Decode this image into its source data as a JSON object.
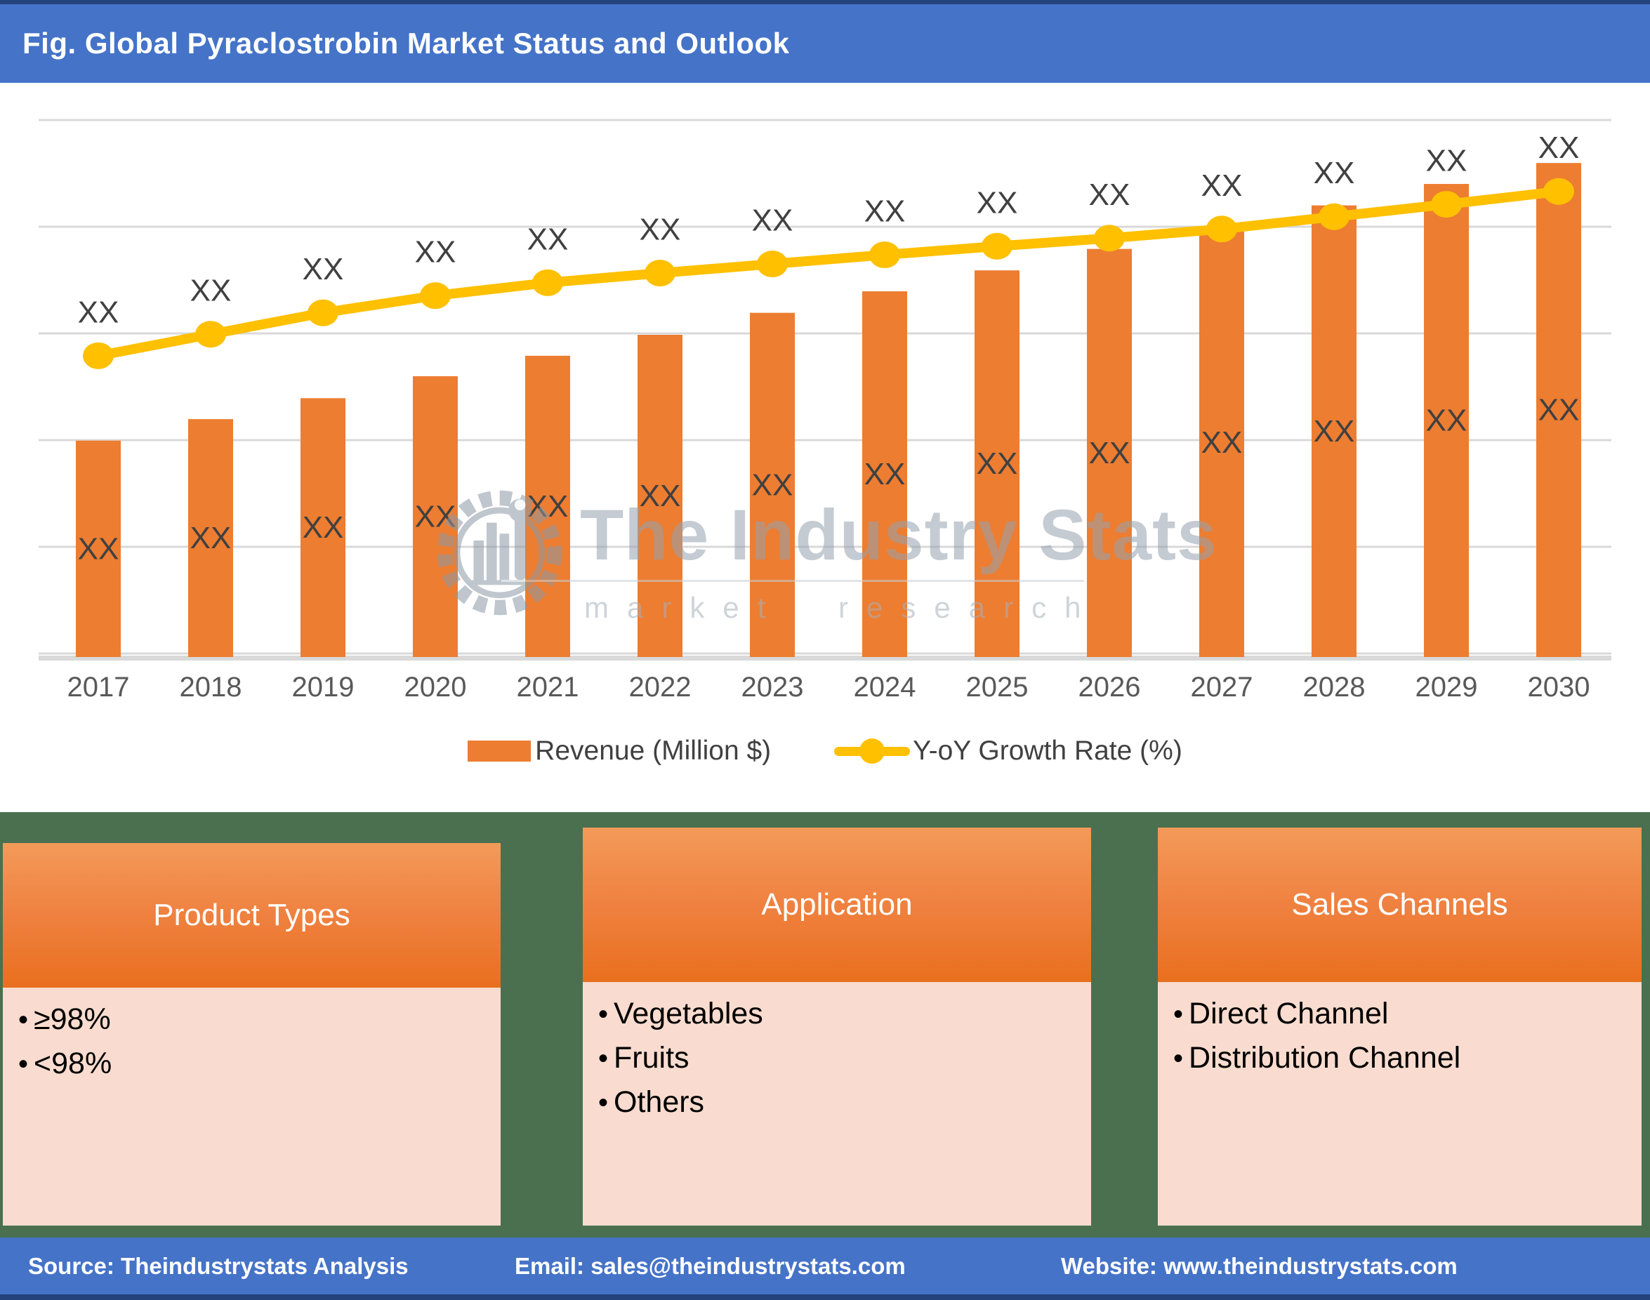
{
  "page": {
    "title": "Fig. Global Pyraclostrobin Market Status and Outlook"
  },
  "chart_data": {
    "type": "bar",
    "subtype": "combo-bar-line",
    "title": "Global Pyraclostrobin Market Status and Outlook",
    "xlabel": "",
    "ylabel": "",
    "categories": [
      "2017",
      "2018",
      "2019",
      "2020",
      "2021",
      "2022",
      "2023",
      "2024",
      "2025",
      "2026",
      "2027",
      "2028",
      "2029",
      "2030"
    ],
    "values_hidden_as": "XX",
    "grid": "horizontal-only",
    "legend_position": "bottom",
    "series": [
      {
        "name": "Revenue (Million $)",
        "type": "bar",
        "color": "#ED7D31",
        "value_labels": [
          "XX",
          "XX",
          "XX",
          "XX",
          "XX",
          "XX",
          "XX",
          "XX",
          "XX",
          "XX",
          "XX",
          "XX",
          "XX",
          "XX"
        ],
        "relative_heights": [
          0.403,
          0.443,
          0.482,
          0.523,
          0.561,
          0.6,
          0.641,
          0.681,
          0.72,
          0.76,
          0.799,
          0.841,
          0.881,
          0.92
        ]
      },
      {
        "name": "Y-oY Growth Rate (%)",
        "type": "line",
        "color": "#FFC000",
        "value_labels": [
          "XX",
          "XX",
          "XX",
          "XX",
          "XX",
          "XX",
          "XX",
          "XX",
          "XX",
          "XX",
          "XX",
          "XX",
          "XX",
          "XX"
        ],
        "relative_levels": [
          0.561,
          0.601,
          0.641,
          0.673,
          0.697,
          0.715,
          0.732,
          0.749,
          0.765,
          0.78,
          0.797,
          0.82,
          0.843,
          0.867
        ]
      }
    ]
  },
  "legend": {
    "items": [
      {
        "label": "Revenue (Million $)",
        "swatch": "bar",
        "color": "#ED7D31"
      },
      {
        "label": "Y-oY Growth Rate (%)",
        "swatch": "line-dot",
        "color": "#FFC000"
      }
    ]
  },
  "watermark": {
    "brand": "The Industry Stats",
    "tagline": "market research",
    "logo": "gear-industry-logo"
  },
  "panels": [
    {
      "title": "Product Types",
      "items": [
        "≥98%",
        "<98%"
      ]
    },
    {
      "title": "Application",
      "items": [
        "Vegetables",
        "Fruits",
        "Others"
      ]
    },
    {
      "title": "Sales Channels",
      "items": [
        "Direct Channel",
        "Distribution Channel"
      ]
    }
  ],
  "footer": {
    "source": "Source: Theindustrystats Analysis",
    "email": "Email: sales@theindustrystats.com",
    "website": "Website: www.theindustrystats.com"
  },
  "colors": {
    "title_bar_blue": "#4573C8",
    "footer_blue": "#4573C8",
    "page_green": "#4A7050",
    "edge_navy": "#24427C",
    "bar_orange": "#ED7D31",
    "line_yellow": "#FFC000",
    "gridline_gray": "#D9D9D9",
    "axis_text_gray": "#595959",
    "label_gray": "#404040",
    "panel_header_orange": "#EF8140",
    "panel_body_pink": "#F9DCCF",
    "watermark_gray": "#96A2AE"
  }
}
